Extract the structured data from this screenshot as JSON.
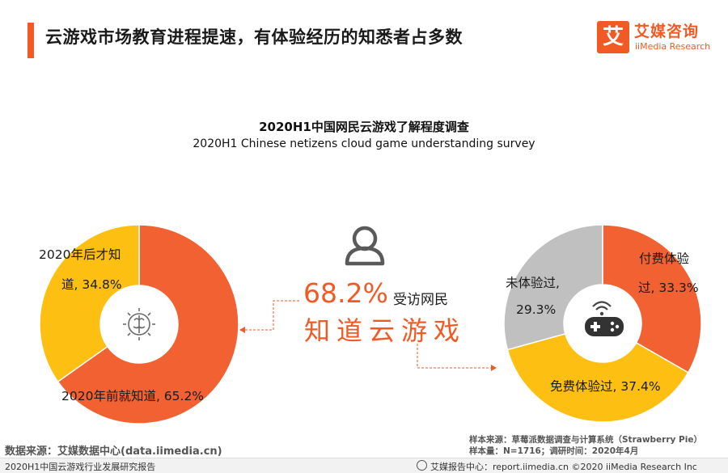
{
  "header": {
    "title": "云游戏市场教育进程提速，有体验经历的知悉者占多数",
    "logo_mark": "艾",
    "logo_cn": "艾媒咨询",
    "logo_en": "iiMedia Research"
  },
  "colors": {
    "orange": "#f26131",
    "yellow": "#fcbf12",
    "gray": "#c0c0c0",
    "accent": "#f15a24"
  },
  "chart_data": [
    {
      "type": "pie",
      "title": "2020H1中国网民云游戏了解程度调查",
      "subtitle": "2020H1 Chinese netizens cloud game understanding survey",
      "categories": [
        "2020年前就知道",
        "2020年后才知道"
      ],
      "values": [
        65.2,
        34.8
      ],
      "unit": "%",
      "center_icon": "idea-brain-icon"
    },
    {
      "type": "pie",
      "categories": [
        "付费体验过",
        "免费体验过",
        "未体验过"
      ],
      "values": [
        33.3,
        37.4,
        29.3
      ],
      "unit": "%",
      "center_icon": "gamepad-icon"
    }
  ],
  "labels": {
    "left_before_line1": "2020年后才知",
    "left_before_line2": "道, 34.8%",
    "left_known": "2020年前就知道, 65.2%",
    "right_paid_line1": "付费体验",
    "right_paid_line2": "过, 33.3%",
    "right_free": "免费体验过, 37.4%",
    "right_none_line1": "未体验过,",
    "right_none_line2": "29.3%"
  },
  "center": {
    "percent": "68.2%",
    "respondents": "受访网民",
    "know": "知道云游戏"
  },
  "footer": {
    "source": "数据来源：艾媒数据中心(data.iimedia.cn)",
    "sample_source": "样本来源：草莓派数据调查与计算系统（Strawberry Pie）",
    "sample_size": "样本量：N=1716；调研时间：2020年4月",
    "report_name": "2020H1中国云游戏行业发展研究报告",
    "copyright": "艾媒报告中心：report.iimedia.cn    ©2020  iiMedia Research  Inc"
  }
}
